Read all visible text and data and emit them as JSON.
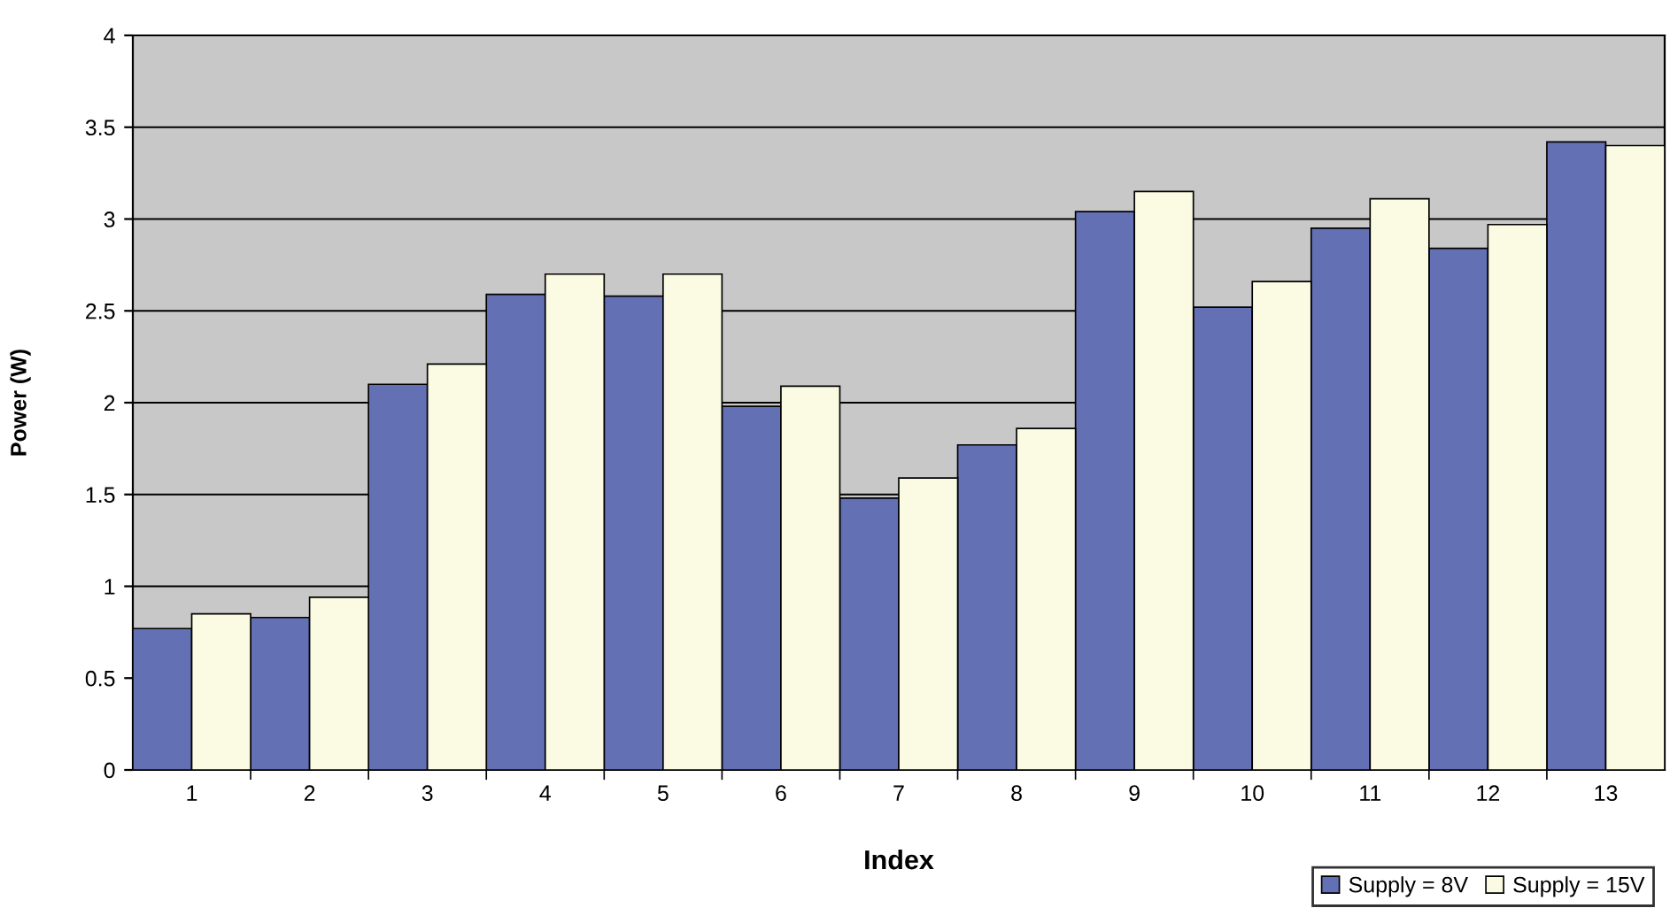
{
  "chart_data": {
    "type": "bar",
    "xlabel": "Index",
    "ylabel": "Power (W)",
    "categories": [
      "1",
      "2",
      "3",
      "4",
      "5",
      "6",
      "7",
      "8",
      "9",
      "10",
      "11",
      "12",
      "13"
    ],
    "series": [
      {
        "name": "Supply = 8V",
        "color": "#6470b4",
        "values": [
          0.77,
          0.83,
          2.1,
          2.59,
          2.58,
          1.98,
          1.48,
          1.77,
          3.04,
          2.52,
          2.95,
          2.84,
          3.42
        ]
      },
      {
        "name": "Supply = 15V",
        "color": "#fbfbe4",
        "values": [
          0.85,
          0.94,
          2.21,
          2.7,
          2.7,
          2.09,
          1.59,
          1.86,
          3.15,
          2.66,
          3.11,
          2.97,
          3.4
        ]
      }
    ],
    "ylim": [
      0,
      4
    ],
    "yticks": [
      0,
      0.5,
      1,
      1.5,
      2,
      2.5,
      3,
      3.5,
      4
    ],
    "grid": "y",
    "legend": "bottom right"
  }
}
